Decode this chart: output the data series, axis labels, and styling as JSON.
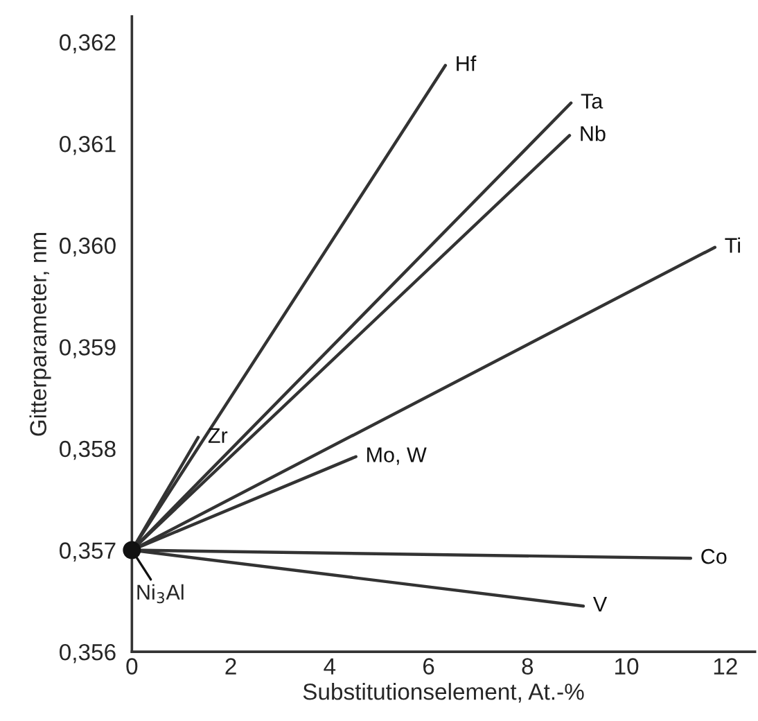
{
  "chart_data": {
    "type": "line",
    "xlabel": "Substitutionselement, At.-%",
    "ylabel": "Gitterparameter, nm",
    "series": [
      {
        "name": "Hf",
        "color": "#333333",
        "x": [
          0,
          6.34
        ],
        "values": [
          0.357,
          0.36177
        ]
      },
      {
        "name": "Ta",
        "color": "#333333",
        "x": [
          0,
          8.88
        ],
        "values": [
          0.357,
          0.3614
        ]
      },
      {
        "name": "Nb",
        "color": "#333333",
        "x": [
          0,
          8.85
        ],
        "values": [
          0.357,
          0.36108
        ]
      },
      {
        "name": "Ti",
        "color": "#333333",
        "x": [
          0,
          11.79
        ],
        "values": [
          0.357,
          0.35998
        ]
      },
      {
        "name": "Zr",
        "color": "#333333",
        "x": [
          0,
          1.34
        ],
        "values": [
          0.357,
          0.35811
        ]
      },
      {
        "name": "Mo, W",
        "color": "#333333",
        "x": [
          0,
          4.53
        ],
        "values": [
          0.357,
          0.35792
        ]
      },
      {
        "name": "Co",
        "color": "#333333",
        "x": [
          0,
          11.3
        ],
        "values": [
          0.357,
          0.35692
        ]
      },
      {
        "name": "V",
        "color": "#333333",
        "x": [
          0,
          9.13
        ],
        "values": [
          0.357,
          0.35645
        ]
      },
      {
        "type": "scatter",
        "color": "#111111",
        "x": [
          0
        ],
        "values": [
          0.357
        ],
        "marker": "circle"
      }
    ],
    "annotations": [
      {
        "text": "Ni$_{3}$Al",
        "x": 0,
        "y": 0.357
      }
    ],
    "xlim": [
      0,
      12.6
    ],
    "xticks": [
      0,
      2,
      4,
      6,
      8,
      10,
      12
    ],
    "ylim": [
      0.356,
      0.36225
    ],
    "yticks": [
      {
        "value": 0.356,
        "label": "0,356"
      },
      {
        "value": 0.357,
        "label": "0,357"
      },
      {
        "value": 0.358,
        "label": "0,358"
      },
      {
        "value": 0.359,
        "label": "0,359"
      },
      {
        "value": 0.36,
        "label": "0,360"
      },
      {
        "value": 0.361,
        "label": "0,361"
      },
      {
        "value": 0.362,
        "label": "0,362"
      }
    ],
    "grid": false,
    "legend": false
  }
}
